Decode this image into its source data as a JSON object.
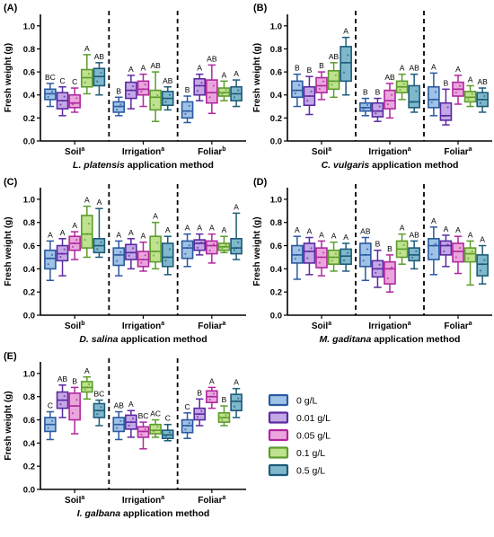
{
  "colors": {
    "s0": {
      "stroke": "#2a5aa0",
      "fill": "#9fc2e6"
    },
    "s1": {
      "stroke": "#5b2aa0",
      "fill": "#c4a8e6"
    },
    "s2": {
      "stroke": "#b0279e",
      "fill": "#eaa6dc"
    },
    "s3": {
      "stroke": "#5d9c2c",
      "fill": "#bfe28e"
    },
    "s4": {
      "stroke": "#1d5b78",
      "fill": "#7fb8cc"
    }
  },
  "legend": {
    "items": [
      {
        "label": "0 g/L",
        "key": "s0"
      },
      {
        "label": "0.01 g/L",
        "key": "s1"
      },
      {
        "label": "0.05 g/L",
        "key": "s2"
      },
      {
        "label": "0.1 g/L",
        "key": "s3"
      },
      {
        "label": "0.5 g/L",
        "key": "s4"
      }
    ]
  },
  "chart_data": [
    {
      "type": "boxplot",
      "panel": "(A)",
      "ylabel": "Fresh weight (g)",
      "ylim": [
        0,
        1.1
      ],
      "yticks": [
        "0.0",
        "0.2",
        "0.4",
        "0.6",
        "0.8",
        "1.0"
      ],
      "xtitle_italic": "L. platensis",
      "xtitle_rest": " application method",
      "groups": [
        {
          "name": "Soil",
          "sup": "a",
          "boxes": [
            {
              "min": 0.3,
              "q1": 0.36,
              "median": 0.41,
              "q3": 0.45,
              "max": 0.5,
              "letter": "BC"
            },
            {
              "min": 0.22,
              "q1": 0.28,
              "median": 0.35,
              "q3": 0.42,
              "max": 0.47,
              "letter": "C"
            },
            {
              "min": 0.25,
              "q1": 0.29,
              "median": 0.33,
              "q3": 0.4,
              "max": 0.46,
              "letter": "C"
            },
            {
              "min": 0.41,
              "q1": 0.47,
              "median": 0.55,
              "q3": 0.62,
              "max": 0.75,
              "letter": "A"
            },
            {
              "min": 0.4,
              "q1": 0.48,
              "median": 0.56,
              "q3": 0.63,
              "max": 0.68,
              "letter": "AB"
            }
          ]
        },
        {
          "name": "Irrigation",
          "sup": "a",
          "boxes": [
            {
              "min": 0.22,
              "q1": 0.25,
              "median": 0.3,
              "q3": 0.34,
              "max": 0.38,
              "letter": "B"
            },
            {
              "min": 0.28,
              "q1": 0.37,
              "median": 0.44,
              "q3": 0.51,
              "max": 0.57,
              "letter": "A"
            },
            {
              "min": 0.3,
              "q1": 0.4,
              "median": 0.45,
              "q3": 0.52,
              "max": 0.58,
              "letter": "A"
            },
            {
              "min": 0.17,
              "q1": 0.27,
              "median": 0.38,
              "q3": 0.44,
              "max": 0.6,
              "letter": "AB"
            },
            {
              "min": 0.27,
              "q1": 0.31,
              "median": 0.37,
              "q3": 0.43,
              "max": 0.47,
              "letter": "AB"
            }
          ]
        },
        {
          "name": "Foliar",
          "sup": "b",
          "boxes": [
            {
              "min": 0.16,
              "q1": 0.2,
              "median": 0.26,
              "q3": 0.34,
              "max": 0.39,
              "letter": "B"
            },
            {
              "min": 0.35,
              "q1": 0.4,
              "median": 0.48,
              "q3": 0.54,
              "max": 0.58,
              "letter": "A"
            },
            {
              "min": 0.24,
              "q1": 0.33,
              "median": 0.42,
              "q3": 0.53,
              "max": 0.66,
              "letter": "AB"
            },
            {
              "min": 0.35,
              "q1": 0.39,
              "median": 0.42,
              "q3": 0.46,
              "max": 0.52,
              "letter": "A"
            },
            {
              "min": 0.3,
              "q1": 0.35,
              "median": 0.41,
              "q3": 0.47,
              "max": 0.53,
              "letter": "A"
            }
          ]
        }
      ]
    },
    {
      "type": "boxplot",
      "panel": "(B)",
      "ylabel": "Fresh weight (g)",
      "ylim": [
        0,
        1.1
      ],
      "yticks": [
        "0.0",
        "0.2",
        "0.4",
        "0.6",
        "0.8",
        "1.0"
      ],
      "xtitle_italic": "C. vulgaris",
      "xtitle_rest": " application method",
      "groups": [
        {
          "name": "Soil",
          "sup": "a",
          "boxes": [
            {
              "min": 0.3,
              "q1": 0.38,
              "median": 0.44,
              "q3": 0.52,
              "max": 0.58,
              "letter": "B"
            },
            {
              "min": 0.23,
              "q1": 0.31,
              "median": 0.39,
              "q3": 0.47,
              "max": 0.56,
              "letter": "B"
            },
            {
              "min": 0.36,
              "q1": 0.42,
              "median": 0.48,
              "q3": 0.55,
              "max": 0.6,
              "letter": "B"
            },
            {
              "min": 0.38,
              "q1": 0.45,
              "median": 0.52,
              "q3": 0.61,
              "max": 0.68,
              "letter": "AB"
            },
            {
              "min": 0.4,
              "q1": 0.52,
              "median": 0.68,
              "q3": 0.82,
              "max": 0.9,
              "letter": "A"
            }
          ]
        },
        {
          "name": "Irrigation",
          "sup": "a",
          "boxes": [
            {
              "min": 0.22,
              "q1": 0.26,
              "median": 0.29,
              "q3": 0.33,
              "max": 0.37,
              "letter": "B"
            },
            {
              "min": 0.17,
              "q1": 0.21,
              "median": 0.26,
              "q3": 0.33,
              "max": 0.37,
              "letter": "B"
            },
            {
              "min": 0.2,
              "q1": 0.28,
              "median": 0.35,
              "q3": 0.44,
              "max": 0.5,
              "letter": "AB"
            },
            {
              "min": 0.36,
              "q1": 0.42,
              "median": 0.47,
              "q3": 0.52,
              "max": 0.58,
              "letter": "A"
            },
            {
              "min": 0.25,
              "q1": 0.29,
              "median": 0.34,
              "q3": 0.48,
              "max": 0.58,
              "letter": "AB"
            }
          ]
        },
        {
          "name": "Foliar",
          "sup": "a",
          "boxes": [
            {
              "min": 0.22,
              "q1": 0.29,
              "median": 0.36,
              "q3": 0.47,
              "max": 0.59,
              "letter": "A"
            },
            {
              "min": 0.14,
              "q1": 0.18,
              "median": 0.22,
              "q3": 0.33,
              "max": 0.45,
              "letter": "B"
            },
            {
              "min": 0.32,
              "q1": 0.39,
              "median": 0.45,
              "q3": 0.51,
              "max": 0.57,
              "letter": "A"
            },
            {
              "min": 0.3,
              "q1": 0.34,
              "median": 0.38,
              "q3": 0.43,
              "max": 0.48,
              "letter": "A"
            },
            {
              "min": 0.25,
              "q1": 0.3,
              "median": 0.36,
              "q3": 0.42,
              "max": 0.46,
              "letter": "AB"
            }
          ]
        }
      ]
    },
    {
      "type": "boxplot",
      "panel": "(C)",
      "ylabel": "Fresh weight (g)",
      "ylim": [
        0,
        1.1
      ],
      "yticks": [
        "0.0",
        "0.2",
        "0.4",
        "0.6",
        "0.8",
        "1.0"
      ],
      "xtitle_italic": "D. salina",
      "xtitle_rest": " application method",
      "groups": [
        {
          "name": "Soil",
          "sup": "b",
          "boxes": [
            {
              "min": 0.3,
              "q1": 0.4,
              "median": 0.49,
              "q3": 0.56,
              "max": 0.64,
              "letter": "A"
            },
            {
              "min": 0.34,
              "q1": 0.47,
              "median": 0.53,
              "q3": 0.6,
              "max": 0.66,
              "letter": "A"
            },
            {
              "min": 0.48,
              "q1": 0.56,
              "median": 0.62,
              "q3": 0.68,
              "max": 0.72,
              "letter": "A"
            },
            {
              "min": 0.5,
              "q1": 0.58,
              "median": 0.7,
              "q3": 0.86,
              "max": 0.94,
              "letter": "A"
            },
            {
              "min": 0.5,
              "q1": 0.54,
              "median": 0.6,
              "q3": 0.66,
              "max": 0.92,
              "letter": "A"
            }
          ]
        },
        {
          "name": "Irrigation",
          "sup": "a",
          "boxes": [
            {
              "min": 0.34,
              "q1": 0.43,
              "median": 0.52,
              "q3": 0.58,
              "max": 0.64,
              "letter": "A"
            },
            {
              "min": 0.4,
              "q1": 0.48,
              "median": 0.54,
              "q3": 0.61,
              "max": 0.66,
              "letter": "A"
            },
            {
              "min": 0.38,
              "q1": 0.42,
              "median": 0.48,
              "q3": 0.55,
              "max": 0.63,
              "letter": "A"
            },
            {
              "min": 0.4,
              "q1": 0.46,
              "median": 0.55,
              "q3": 0.68,
              "max": 0.8,
              "letter": "A"
            },
            {
              "min": 0.35,
              "q1": 0.42,
              "median": 0.5,
              "q3": 0.62,
              "max": 0.68,
              "letter": "A"
            }
          ]
        },
        {
          "name": "Foliar",
          "sup": "a",
          "boxes": [
            {
              "min": 0.42,
              "q1": 0.49,
              "median": 0.58,
              "q3": 0.64,
              "max": 0.7,
              "letter": "A"
            },
            {
              "min": 0.52,
              "q1": 0.56,
              "median": 0.62,
              "q3": 0.65,
              "max": 0.7,
              "letter": "A"
            },
            {
              "min": 0.45,
              "q1": 0.53,
              "median": 0.6,
              "q3": 0.64,
              "max": 0.7,
              "letter": "A"
            },
            {
              "min": 0.54,
              "q1": 0.56,
              "median": 0.59,
              "q3": 0.62,
              "max": 0.68,
              "letter": "A"
            },
            {
              "min": 0.48,
              "q1": 0.53,
              "median": 0.58,
              "q3": 0.66,
              "max": 0.88,
              "letter": "A"
            }
          ]
        }
      ]
    },
    {
      "type": "boxplot",
      "panel": "(D)",
      "ylabel": "Fresh weight (g)",
      "ylim": [
        0,
        1.1
      ],
      "yticks": [
        "0.0",
        "0.2",
        "0.4",
        "0.6",
        "0.8",
        "1.0"
      ],
      "xtitle_italic": "M. gaditana",
      "xtitle_rest": " application method",
      "groups": [
        {
          "name": "Soil",
          "sup": "a",
          "boxes": [
            {
              "min": 0.31,
              "q1": 0.45,
              "median": 0.52,
              "q3": 0.6,
              "max": 0.68,
              "letter": "A"
            },
            {
              "min": 0.35,
              "q1": 0.45,
              "median": 0.55,
              "q3": 0.62,
              "max": 0.67,
              "letter": "A"
            },
            {
              "min": 0.34,
              "q1": 0.41,
              "median": 0.5,
              "q3": 0.58,
              "max": 0.64,
              "letter": "A"
            },
            {
              "min": 0.38,
              "q1": 0.44,
              "median": 0.5,
              "q3": 0.56,
              "max": 0.63,
              "letter": "A"
            },
            {
              "min": 0.38,
              "q1": 0.44,
              "median": 0.51,
              "q3": 0.57,
              "max": 0.62,
              "letter": "A"
            }
          ]
        },
        {
          "name": "Irrigation",
          "sup": "a",
          "boxes": [
            {
              "min": 0.3,
              "q1": 0.42,
              "median": 0.52,
              "q3": 0.62,
              "max": 0.67,
              "letter": "AB"
            },
            {
              "min": 0.24,
              "q1": 0.33,
              "median": 0.4,
              "q3": 0.47,
              "max": 0.56,
              "letter": "B"
            },
            {
              "min": 0.2,
              "q1": 0.27,
              "median": 0.4,
              "q3": 0.46,
              "max": 0.52,
              "letter": "B"
            },
            {
              "min": 0.44,
              "q1": 0.5,
              "median": 0.57,
              "q3": 0.64,
              "max": 0.7,
              "letter": "A"
            },
            {
              "min": 0.4,
              "q1": 0.47,
              "median": 0.52,
              "q3": 0.58,
              "max": 0.64,
              "letter": "AB"
            }
          ]
        },
        {
          "name": "Foliar",
          "sup": "a",
          "boxes": [
            {
              "min": 0.35,
              "q1": 0.48,
              "median": 0.6,
              "q3": 0.66,
              "max": 0.76,
              "letter": "A"
            },
            {
              "min": 0.42,
              "q1": 0.52,
              "median": 0.6,
              "q3": 0.64,
              "max": 0.69,
              "letter": "A"
            },
            {
              "min": 0.36,
              "q1": 0.46,
              "median": 0.55,
              "q3": 0.62,
              "max": 0.68,
              "letter": "A"
            },
            {
              "min": 0.26,
              "q1": 0.46,
              "median": 0.53,
              "q3": 0.58,
              "max": 0.64,
              "letter": "A"
            },
            {
              "min": 0.27,
              "q1": 0.34,
              "median": 0.44,
              "q3": 0.52,
              "max": 0.6,
              "letter": "A"
            }
          ]
        }
      ]
    },
    {
      "type": "boxplot",
      "panel": "(E)",
      "ylabel": "Fresh weight (g)",
      "ylim": [
        0,
        1.1
      ],
      "yticks": [
        "0.0",
        "0.2",
        "0.4",
        "0.6",
        "0.8",
        "1.0"
      ],
      "xtitle_italic": "I. galbana",
      "xtitle_rest": " application method",
      "groups": [
        {
          "name": "Soil",
          "sup": "a",
          "boxes": [
            {
              "min": 0.43,
              "q1": 0.5,
              "median": 0.56,
              "q3": 0.62,
              "max": 0.67,
              "letter": "C"
            },
            {
              "min": 0.62,
              "q1": 0.7,
              "median": 0.77,
              "q3": 0.84,
              "max": 0.9,
              "letter": "AB"
            },
            {
              "min": 0.48,
              "q1": 0.6,
              "median": 0.72,
              "q3": 0.83,
              "max": 0.88,
              "letter": "B"
            },
            {
              "min": 0.78,
              "q1": 0.84,
              "median": 0.88,
              "q3": 0.93,
              "max": 0.97,
              "letter": "A"
            },
            {
              "min": 0.55,
              "q1": 0.62,
              "median": 0.68,
              "q3": 0.74,
              "max": 0.77,
              "letter": "BC"
            }
          ]
        },
        {
          "name": "Irrigation",
          "sup": "a",
          "boxes": [
            {
              "min": 0.43,
              "q1": 0.5,
              "median": 0.56,
              "q3": 0.62,
              "max": 0.67,
              "letter": "AB"
            },
            {
              "min": 0.45,
              "q1": 0.52,
              "median": 0.58,
              "q3": 0.64,
              "max": 0.68,
              "letter": "A"
            },
            {
              "min": 0.35,
              "q1": 0.45,
              "median": 0.5,
              "q3": 0.54,
              "max": 0.58,
              "letter": "BC"
            },
            {
              "min": 0.45,
              "q1": 0.48,
              "median": 0.51,
              "q3": 0.56,
              "max": 0.6,
              "letter": "AC"
            },
            {
              "min": 0.42,
              "q1": 0.44,
              "median": 0.47,
              "q3": 0.51,
              "max": 0.56,
              "letter": "C"
            }
          ]
        },
        {
          "name": "Foliar",
          "sup": "a",
          "boxes": [
            {
              "min": 0.44,
              "q1": 0.49,
              "median": 0.55,
              "q3": 0.6,
              "max": 0.66,
              "letter": "C"
            },
            {
              "min": 0.55,
              "q1": 0.6,
              "median": 0.65,
              "q3": 0.7,
              "max": 0.78,
              "letter": "B"
            },
            {
              "min": 0.7,
              "q1": 0.75,
              "median": 0.8,
              "q3": 0.85,
              "max": 0.88,
              "letter": "A"
            },
            {
              "min": 0.55,
              "q1": 0.58,
              "median": 0.62,
              "q3": 0.66,
              "max": 0.72,
              "letter": "B"
            },
            {
              "min": 0.62,
              "q1": 0.68,
              "median": 0.76,
              "q3": 0.82,
              "max": 0.87,
              "letter": "A"
            }
          ]
        }
      ]
    }
  ]
}
